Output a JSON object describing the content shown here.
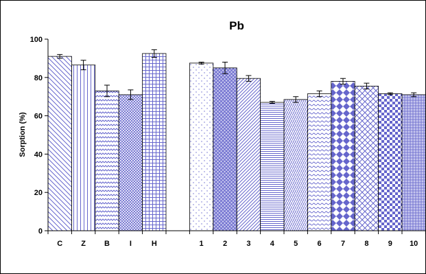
{
  "chart_data": {
    "type": "bar",
    "title": "Pb",
    "xlabel": "",
    "ylabel": "Sorption (%)",
    "ylim": [
      0,
      100
    ],
    "yticks": [
      "0",
      "20",
      "40",
      "60",
      "80",
      "100"
    ],
    "grid": false,
    "legend": "none",
    "bar_color": "#6666cc",
    "categories": [
      "C",
      "Z",
      "B",
      "I",
      "H",
      "1",
      "2",
      "3",
      "4",
      "5",
      "6",
      "7",
      "8",
      "9",
      "10"
    ],
    "values": [
      91,
      86.5,
      73,
      71,
      92.5,
      87.5,
      85,
      79.5,
      67,
      68.5,
      71.5,
      78,
      75.5,
      71.5,
      71
    ],
    "errors": [
      1,
      2.5,
      3,
      2.5,
      2,
      0.5,
      3,
      1.5,
      0.5,
      1.5,
      1.5,
      1.5,
      1.5,
      0.5,
      1
    ]
  }
}
